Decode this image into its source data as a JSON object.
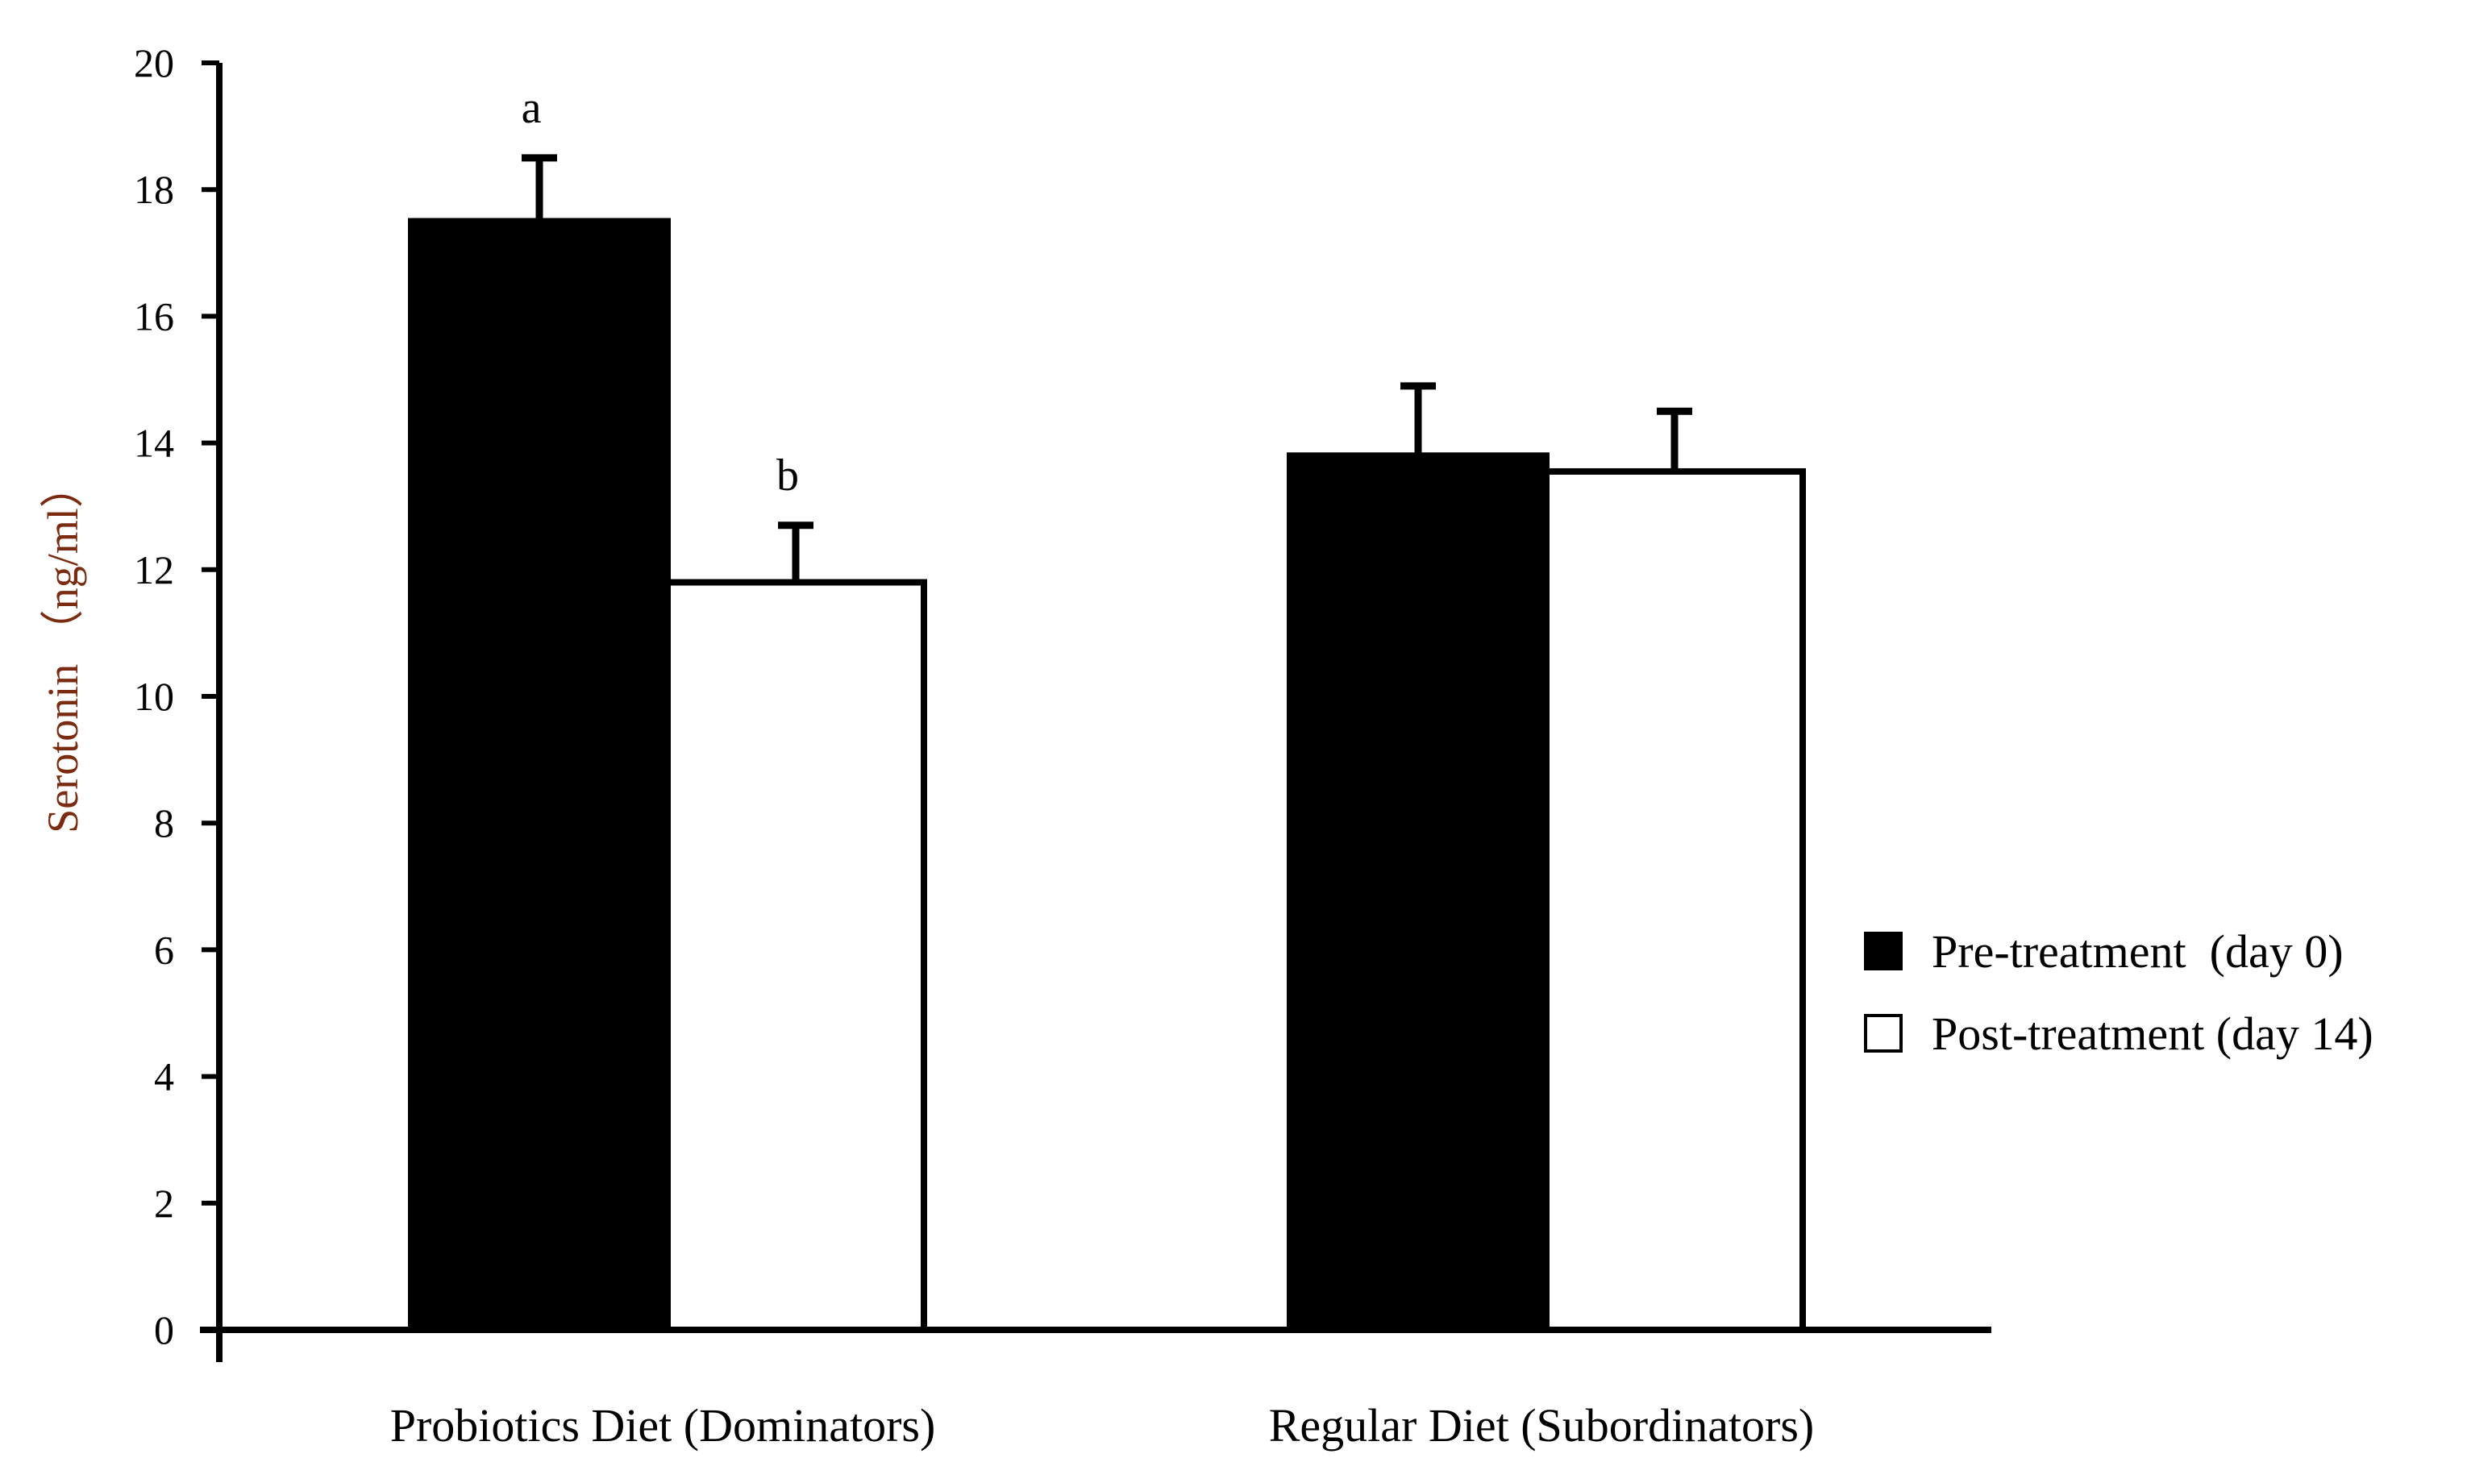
{
  "chart_data": {
    "type": "bar",
    "title": "",
    "xlabel": "",
    "ylabel": "Serotonin （ng/ml）",
    "ylim": [
      0,
      20
    ],
    "yticks": [
      0,
      2,
      4,
      6,
      8,
      10,
      12,
      14,
      16,
      18,
      20
    ],
    "grid": false,
    "legend_position": "right",
    "categories": [
      "Probiotics Diet (Dominators)",
      "Regular Diet (Subordinators)"
    ],
    "series": [
      {
        "name": "Pre-treatment  (day 0)",
        "fill": "#000000",
        "values": [
          17.5,
          13.8
        ],
        "errors": [
          1.0,
          1.1
        ],
        "annotations": [
          "a",
          ""
        ]
      },
      {
        "name": "Post-treatment (day 14)",
        "fill": "#ffffff",
        "values": [
          11.8,
          13.55
        ],
        "errors": [
          0.9,
          0.95
        ],
        "annotations": [
          "b",
          ""
        ]
      }
    ]
  },
  "colors": {
    "axis": "#000000",
    "ylabel": "#7a2b10",
    "bar_stroke": "#000000"
  }
}
